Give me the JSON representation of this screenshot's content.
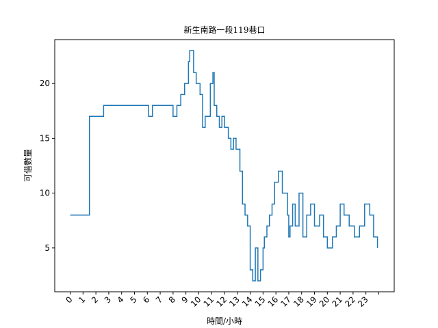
{
  "chart_data": {
    "type": "line",
    "title": "新生南路一段119巷口",
    "xlabel": "時間/小時",
    "ylabel": "可借數量",
    "xlim": [
      -1.2,
      25.2
    ],
    "ylim": [
      1.0,
      24.0
    ],
    "x_ticks": [
      0,
      1,
      2,
      3,
      4,
      5,
      6,
      7,
      8,
      9,
      10,
      11,
      12,
      13,
      14,
      15,
      16,
      17,
      18,
      19,
      20,
      21,
      22,
      23
    ],
    "x_tick_labels": [
      "0",
      "1",
      "2",
      "3",
      "4",
      "5",
      "6",
      "7",
      "8",
      "9",
      "10",
      "11",
      "12",
      "13",
      "14",
      "15",
      "16",
      "17",
      "18",
      "19",
      "20",
      "21",
      "22",
      "23"
    ],
    "y_ticks": [
      5,
      10,
      15,
      20
    ],
    "y_tick_labels": [
      "5",
      "10",
      "15",
      "20"
    ],
    "series": [
      {
        "color": "#1f77b4",
        "step": true,
        "x": [
          0,
          1.5,
          2.6,
          6.1,
          6.4,
          8.0,
          8.3,
          8.6,
          8.9,
          9.2,
          9.3,
          9.6,
          9.8,
          10.1,
          10.3,
          10.5,
          10.9,
          11.1,
          11.2,
          11.4,
          11.6,
          11.8,
          12.0,
          12.3,
          12.5,
          12.7,
          12.9,
          13.2,
          13.4,
          13.6,
          13.8,
          14.0,
          14.2,
          14.4,
          14.6,
          14.8,
          15.0,
          15.1,
          15.3,
          15.5,
          15.7,
          15.9,
          16.2,
          16.5,
          16.9,
          17.0,
          17.1,
          17.3,
          17.5,
          17.8,
          18.1,
          18.4,
          18.7,
          19.0,
          19.4,
          19.7,
          20.0,
          20.4,
          20.7,
          21.0,
          21.3,
          21.7,
          22.1,
          22.5,
          22.9,
          23.3,
          23.6,
          23.9
        ],
        "y": [
          8,
          17,
          18,
          17,
          18,
          17,
          18,
          19,
          20,
          22,
          23,
          21,
          20,
          19,
          16,
          17,
          20,
          21,
          18,
          17,
          16,
          17,
          16,
          15,
          14,
          15,
          14,
          12,
          9,
          8,
          7,
          3,
          2,
          5,
          2,
          3,
          5,
          6,
          7,
          8,
          9,
          11,
          12,
          10,
          8,
          6,
          7,
          9,
          7,
          10,
          6,
          8,
          9,
          7,
          8,
          6,
          5,
          6,
          7,
          9,
          8,
          7,
          6,
          7,
          9,
          8,
          6,
          5
        ]
      }
    ]
  }
}
